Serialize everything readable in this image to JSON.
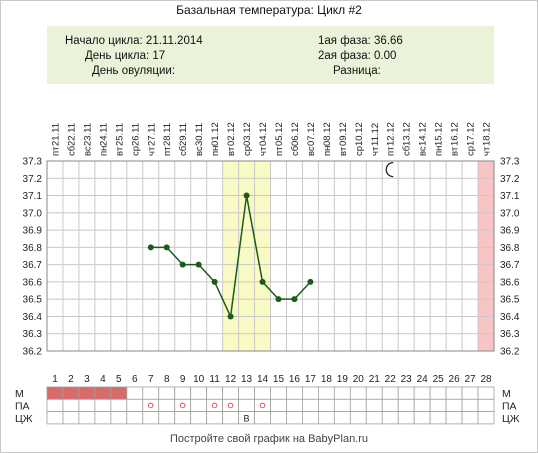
{
  "title": "Базальная температура: Цикл #2",
  "info": {
    "cycle_start": "Начало цикла: 21.11.2014",
    "cycle_day": "День цикла: 17",
    "ovulation_day": "День овуляции:",
    "phase1": "1ая фаза: 36.66",
    "phase2": "2ая фаза: 0.00",
    "difference": "Разница:"
  },
  "footer": "Постройте свой график на BabyPlan.ru",
  "row_labels": [
    "М",
    "ПА",
    "ЦЖ"
  ],
  "colors": {
    "line": "#1a5c1a",
    "ovulation_band": "#fafac4",
    "last_day_band": "#f9c4c4",
    "menstruation": "#d96a6a",
    "pa_marker": "#e05050",
    "info_bg": "#eaf3d9"
  },
  "icons": [
    "moon-icon"
  ],
  "chart_data": {
    "type": "line",
    "title": "Базальная температура: Цикл #2",
    "dates": [
      "21.11",
      "22.11",
      "23.11",
      "24.11",
      "25.11",
      "26.11",
      "27.11",
      "28.11",
      "29.11",
      "30.11",
      "01.12",
      "02.12",
      "03.12",
      "04.12",
      "05.12",
      "06.12",
      "07.12",
      "08.12",
      "09.12",
      "10.12",
      "11.12",
      "12.12",
      "13.12",
      "14.12",
      "15.12",
      "16.12",
      "17.12",
      "18.12"
    ],
    "weekdays": [
      "пт",
      "сб",
      "вс",
      "пн",
      "вт",
      "ср",
      "чт",
      "пт",
      "сб",
      "вс",
      "пн",
      "вт",
      "ср",
      "чт",
      "пт",
      "сб",
      "вс",
      "пн",
      "вт",
      "ср",
      "чт",
      "пт",
      "сб",
      "вс",
      "пн",
      "вт",
      "ср",
      "чт"
    ],
    "days": [
      1,
      2,
      3,
      4,
      5,
      6,
      7,
      8,
      9,
      10,
      11,
      12,
      13,
      14,
      15,
      16,
      17,
      18,
      19,
      20,
      21,
      22,
      23,
      24,
      25,
      26,
      27,
      28
    ],
    "y_ticks": [
      "37.3",
      "37.2",
      "37.1",
      "37.0",
      "36.9",
      "36.8",
      "36.7",
      "36.6",
      "36.5",
      "36.4",
      "36.3",
      "36.2"
    ],
    "ylim": [
      36.2,
      37.3
    ],
    "series": [
      {
        "x": [
          7,
          8,
          9,
          10,
          11,
          12,
          13,
          14,
          15,
          16,
          17
        ],
        "y": [
          36.8,
          36.8,
          36.7,
          36.7,
          36.6,
          36.4,
          37.1,
          36.6,
          36.5,
          36.5,
          36.6
        ]
      }
    ],
    "highlight_days": [
      12,
      13,
      14
    ],
    "last_day": 28,
    "moon_day": 22,
    "moon_temp": 37.25,
    "menstruation_days": [
      1,
      2,
      3,
      4,
      5
    ],
    "pa_days": [
      7,
      9,
      11,
      12,
      14
    ],
    "cz_marks": [
      {
        "day": 13,
        "label": "В"
      }
    ],
    "grid": true
  }
}
